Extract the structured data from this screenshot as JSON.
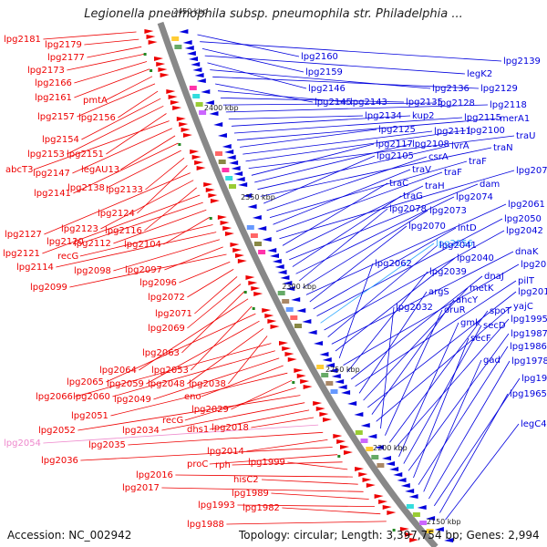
{
  "title": "Legionella pneumophila subsp. pneumophila str. Philadelphia ...",
  "footer": {
    "accession": "Accession: NC_002942",
    "topology": "Topology: circular; Length: 3,397,754 bp; Genes: 2,994"
  },
  "colors": {
    "forward": "#ee0000",
    "reverse": "#0000dd",
    "backbone": "#888888",
    "highlight_light_blue": "#33aaff",
    "highlight_pink": "#ee88cc"
  },
  "scale_labels": [
    "2450 kbp",
    "2400 kbp",
    "2350 kbp",
    "2300 kbp",
    "2250 kbp",
    "2200 kbp",
    "2150 kbp"
  ],
  "left_labels": [
    "lpg2181",
    "lpg2179",
    "lpg2177",
    "lpg2173",
    "lpg2166",
    "lpg2161",
    "pmtA",
    "lpg2157",
    "lpg2156",
    "lpg2154",
    "lpg2153",
    "lpg2151",
    "abcT3",
    "lpg2147",
    "legAU13",
    "lpg2141",
    "lpg2138",
    "lpg2133",
    "lpg2124",
    "lpg2127",
    "lpg2123",
    "lpg2116",
    "lpg2121",
    "lpg2120",
    "lpg2112",
    "lpg2104",
    "recG",
    "lpg2114",
    "lpg2098",
    "lpg2097",
    "lpg2099",
    "lpg2096",
    "lpg2072",
    "lpg2071",
    "lpg2069",
    "lpg2063",
    "lpg2064",
    "lpg2053",
    "lpg2065",
    "lpg2059",
    "lpg2048",
    "lpg2038",
    "lpg2066",
    "lpg2060",
    "lpg2049",
    "eno",
    "lpg2051",
    "lpg2029",
    "recG",
    "lpg2052",
    "lpg2034",
    "dhs1",
    "lpg2018",
    "lpg2054",
    "lpg2035",
    "lpg2014",
    "lpg2036",
    "proC",
    "rph",
    "lpg1999",
    "lpg2016",
    "hisC2",
    "lpg2017",
    "lpg1989",
    "lpg1993",
    "lpg1982",
    "lpg1988"
  ],
  "right_labels": [
    "lpg2160",
    "lpg2139",
    "lpg2159",
    "legK2",
    "lpg2146",
    "lpg2136",
    "lpg2129",
    "lpg2145",
    "lpg2143",
    "lpg2135",
    "lpg2128",
    "lpg2118",
    "lpg2134",
    "kup2",
    "lpg2115",
    "merA1",
    "lpg2125",
    "lpg2111",
    "lpg2100",
    "traU",
    "lpg2117",
    "lpg2108",
    "lvrA",
    "traN",
    "lpg2105",
    "csrA",
    "traF",
    "traV",
    "traF",
    "lpg2076",
    "traC",
    "traH",
    "dam",
    "traG",
    "lpg2074",
    "lpg2078",
    "lpg2073",
    "lpg2061",
    "lpg2070",
    "intD",
    "lpg2050",
    "lpg2056",
    "lpg2042",
    "lpg2041",
    "dnaK",
    "lpg2040",
    "lpg2062",
    "lpg2023",
    "lpg2039",
    "dnaJ",
    "pilT",
    "argS",
    "metK",
    "lpg2011",
    "ahcY",
    "yajC",
    "lpg2032",
    "oruR",
    "spoT",
    "lpg1995",
    "gmk",
    "secD",
    "lpg1987",
    "secF",
    "lpg1986",
    "gad",
    "lpg1978",
    "lpg1969",
    "lpg1965",
    "legC4"
  ]
}
